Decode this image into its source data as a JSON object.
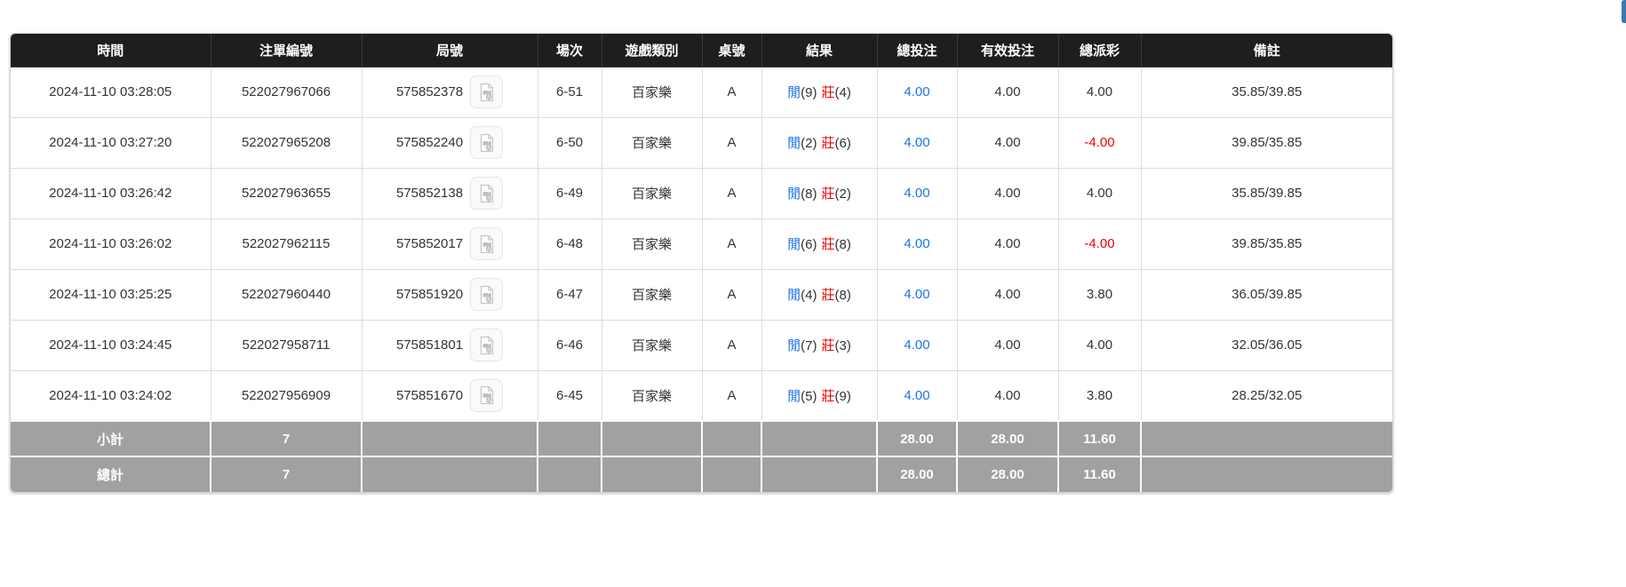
{
  "colors": {
    "accent_blue": "#1a73e8",
    "accent_red": "#ee0000",
    "header_bg": "#1e1e1e",
    "footer_bg": "#a1a1a1",
    "cutoff_blue": "#3a78b5"
  },
  "table": {
    "columns": [
      {
        "key": "time",
        "label": "時間"
      },
      {
        "key": "ticket",
        "label": "注單編號"
      },
      {
        "key": "round",
        "label": "局號"
      },
      {
        "key": "session",
        "label": "場次"
      },
      {
        "key": "game",
        "label": "遊戲類別"
      },
      {
        "key": "table_id",
        "label": "桌號"
      },
      {
        "key": "result",
        "label": "結果"
      },
      {
        "key": "total_bet",
        "label": "總投注"
      },
      {
        "key": "valid_bet",
        "label": "有效投注"
      },
      {
        "key": "payout",
        "label": "總派彩"
      },
      {
        "key": "remark",
        "label": "備註"
      }
    ],
    "rows": [
      {
        "time": "2024-11-10 03:28:05",
        "ticket": "522027967066",
        "round": "575852378",
        "session": "6-51",
        "game": "百家樂",
        "table_id": "A",
        "result": {
          "player_label": "閒",
          "player": "(9)",
          "banker_label": "莊",
          "banker": "(4)"
        },
        "total_bet": "4.00",
        "valid_bet": "4.00",
        "payout": "4.00",
        "remark": "35.85/39.85"
      },
      {
        "time": "2024-11-10 03:27:20",
        "ticket": "522027965208",
        "round": "575852240",
        "session": "6-50",
        "game": "百家樂",
        "table_id": "A",
        "result": {
          "player_label": "閒",
          "player": "(2)",
          "banker_label": "莊",
          "banker": "(6)"
        },
        "total_bet": "4.00",
        "valid_bet": "4.00",
        "payout": "-4.00",
        "remark": "39.85/35.85"
      },
      {
        "time": "2024-11-10 03:26:42",
        "ticket": "522027963655",
        "round": "575852138",
        "session": "6-49",
        "game": "百家樂",
        "table_id": "A",
        "result": {
          "player_label": "閒",
          "player": "(8)",
          "banker_label": "莊",
          "banker": "(2)"
        },
        "total_bet": "4.00",
        "valid_bet": "4.00",
        "payout": "4.00",
        "remark": "35.85/39.85"
      },
      {
        "time": "2024-11-10 03:26:02",
        "ticket": "522027962115",
        "round": "575852017",
        "session": "6-48",
        "game": "百家樂",
        "table_id": "A",
        "result": {
          "player_label": "閒",
          "player": "(6)",
          "banker_label": "莊",
          "banker": "(8)"
        },
        "total_bet": "4.00",
        "valid_bet": "4.00",
        "payout": "-4.00",
        "remark": "39.85/35.85"
      },
      {
        "time": "2024-11-10 03:25:25",
        "ticket": "522027960440",
        "round": "575851920",
        "session": "6-47",
        "game": "百家樂",
        "table_id": "A",
        "result": {
          "player_label": "閒",
          "player": "(4)",
          "banker_label": "莊",
          "banker": "(8)"
        },
        "total_bet": "4.00",
        "valid_bet": "4.00",
        "payout": "3.80",
        "remark": "36.05/39.85"
      },
      {
        "time": "2024-11-10 03:24:45",
        "ticket": "522027958711",
        "round": "575851801",
        "session": "6-46",
        "game": "百家樂",
        "table_id": "A",
        "result": {
          "player_label": "閒",
          "player": "(7)",
          "banker_label": "莊",
          "banker": "(3)"
        },
        "total_bet": "4.00",
        "valid_bet": "4.00",
        "payout": "4.00",
        "remark": "32.05/36.05"
      },
      {
        "time": "2024-11-10 03:24:02",
        "ticket": "522027956909",
        "round": "575851670",
        "session": "6-45",
        "game": "百家樂",
        "table_id": "A",
        "result": {
          "player_label": "閒",
          "player": "(5)",
          "banker_label": "莊",
          "banker": "(9)"
        },
        "total_bet": "4.00",
        "valid_bet": "4.00",
        "payout": "3.80",
        "remark": "28.25/32.05"
      }
    ],
    "footer": [
      {
        "label": "小計",
        "count": "7",
        "total_bet": "28.00",
        "valid_bet": "28.00",
        "payout": "11.60"
      },
      {
        "label": "總計",
        "count": "7",
        "total_bet": "28.00",
        "valid_bet": "28.00",
        "payout": "11.60"
      }
    ]
  }
}
